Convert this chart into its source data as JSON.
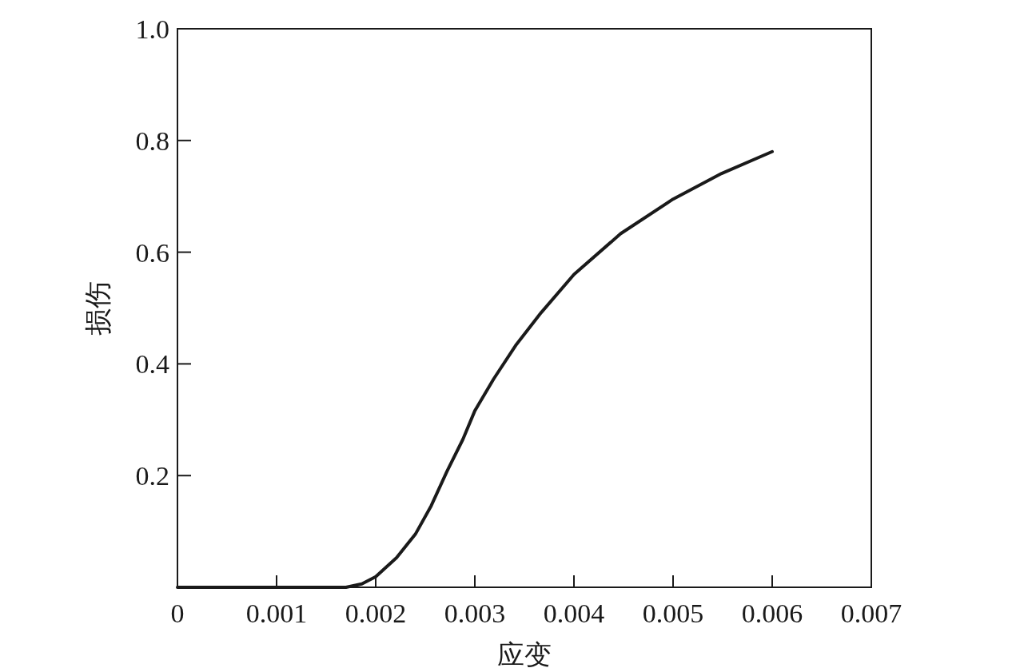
{
  "chart_data": {
    "type": "line",
    "xlabel": "应变",
    "ylabel": "损伤",
    "xlim": [
      0,
      0.007
    ],
    "ylim": [
      0,
      1.0
    ],
    "xticks": [
      0,
      0.001,
      0.002,
      0.003,
      0.004,
      0.005,
      0.006,
      0.007
    ],
    "yticks": [
      0.2,
      0.4,
      0.6,
      0.8,
      {
        "value": 1.0,
        "label": "1.0"
      }
    ],
    "series": [
      {
        "color": "#1a1a1a",
        "x": [
          0,
          0.0017,
          0.00186,
          0.002,
          0.00221,
          0.0024,
          0.00256,
          0.00272,
          0.00288,
          0.003,
          0.00319,
          0.00342,
          0.00367,
          0.004,
          0.00447,
          0.005,
          0.00549,
          0.006
        ],
        "values": [
          0,
          0,
          0.006,
          0.019,
          0.053,
          0.095,
          0.146,
          0.208,
          0.265,
          0.316,
          0.373,
          0.435,
          0.492,
          0.56,
          0.633,
          0.695,
          0.741,
          0.78
        ]
      }
    ]
  }
}
